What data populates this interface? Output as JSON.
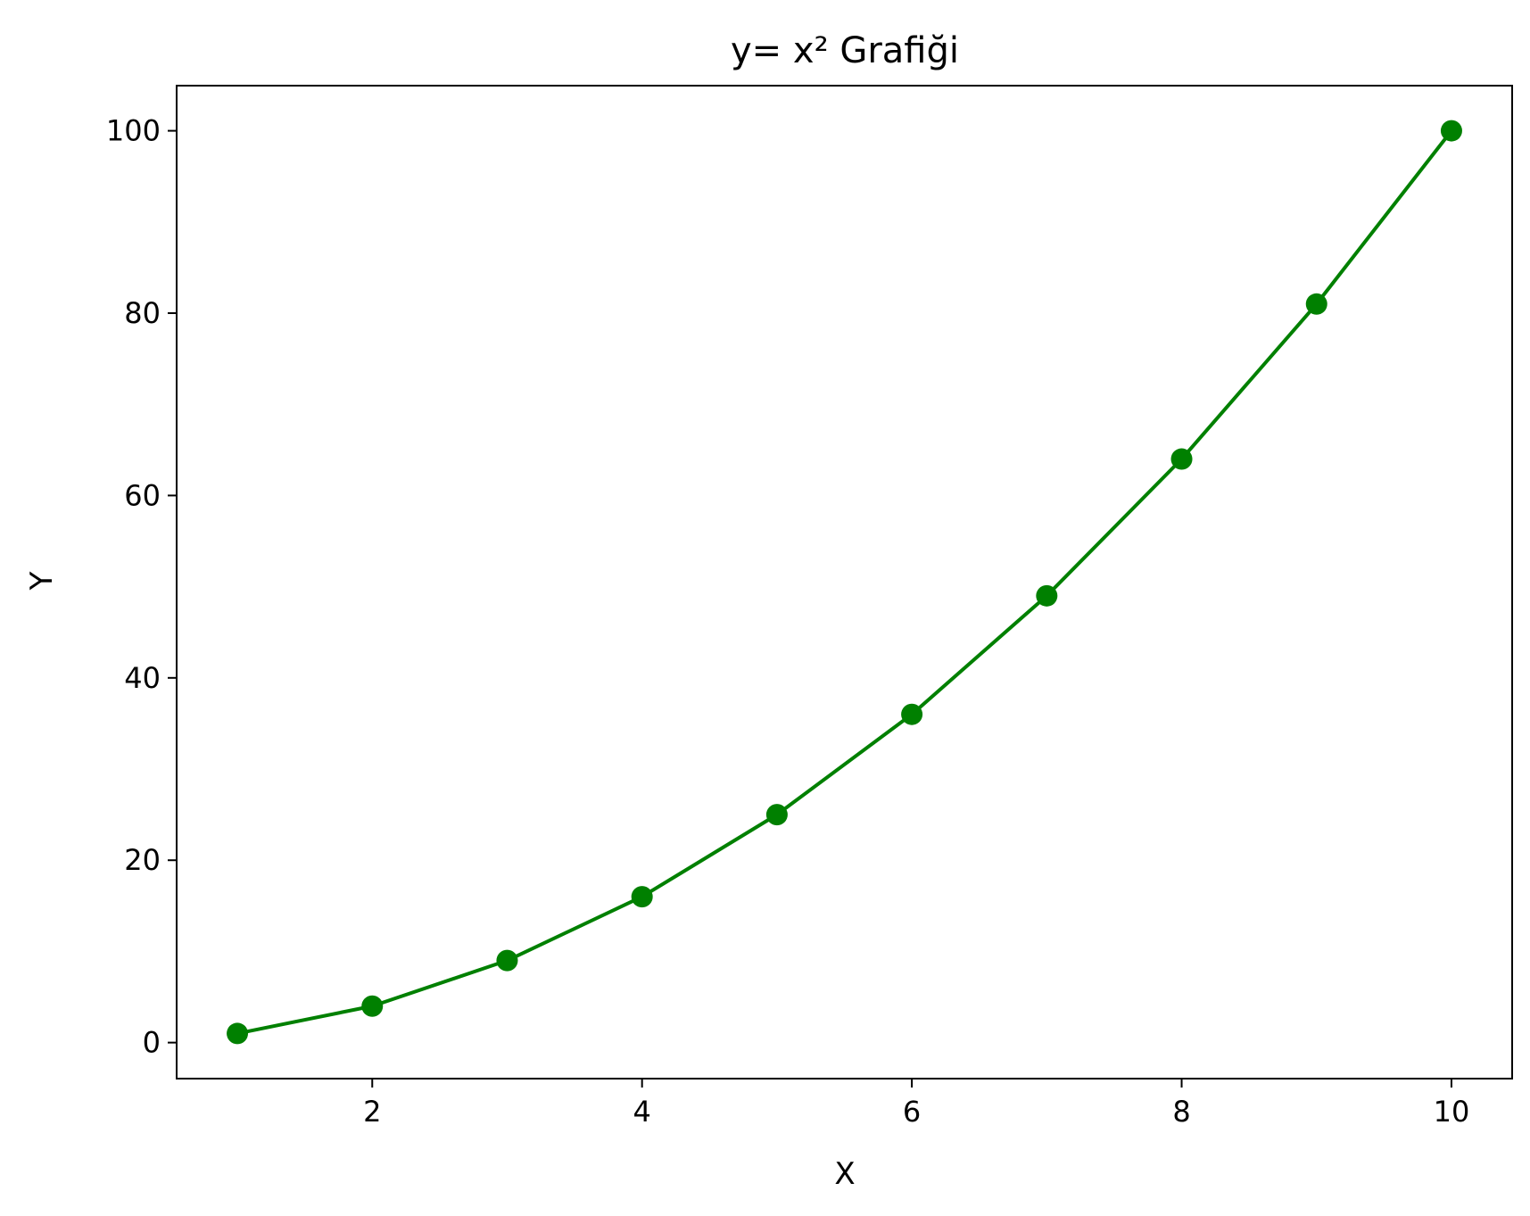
{
  "chart_data": {
    "type": "line",
    "title": "y= x² Grafiği",
    "xlabel": "X",
    "ylabel": "Y",
    "xlim": [
      0.55,
      10.45
    ],
    "ylim": [
      -3.95,
      104.95
    ],
    "x_ticks": [
      2,
      4,
      6,
      8,
      10
    ],
    "y_ticks": [
      0,
      20,
      40,
      60,
      80,
      100
    ],
    "grid": false,
    "legend": "none",
    "series": [
      {
        "color": "#008000",
        "marker": "circle",
        "x": [
          1,
          2,
          3,
          4,
          5,
          6,
          7,
          8,
          9,
          10
        ],
        "y": [
          1,
          4,
          9,
          16,
          25,
          36,
          49,
          64,
          81,
          100
        ]
      }
    ]
  }
}
